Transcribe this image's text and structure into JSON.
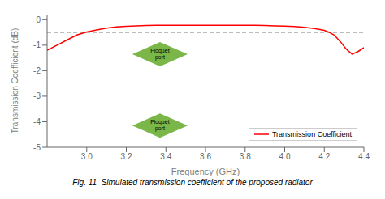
{
  "chart_data": {
    "type": "line",
    "xlabel": "Frequency (GHz)",
    "ylabel": "Transmission Coefficient (dB)",
    "caption": "Fig. 11  Simulated transmission coefficient of the proposed radiator",
    "x": [
      2.8,
      2.85,
      2.9,
      2.95,
      3.0,
      3.05,
      3.1,
      3.15,
      3.2,
      3.25,
      3.3,
      3.35,
      3.4,
      3.45,
      3.5,
      3.55,
      3.6,
      3.65,
      3.7,
      3.75,
      3.8,
      3.85,
      3.9,
      3.95,
      4.0,
      4.05,
      4.1,
      4.15,
      4.2,
      4.22,
      4.25,
      4.28,
      4.31,
      4.34,
      4.37,
      4.4
    ],
    "series": [
      {
        "name": "Transmission Coefficient",
        "color": "#ff0000",
        "values": [
          -1.2,
          -1.0,
          -0.8,
          -0.6,
          -0.48,
          -0.4,
          -0.33,
          -0.28,
          -0.26,
          -0.24,
          -0.23,
          -0.22,
          -0.22,
          -0.22,
          -0.22,
          -0.22,
          -0.22,
          -0.22,
          -0.22,
          -0.22,
          -0.22,
          -0.22,
          -0.23,
          -0.24,
          -0.25,
          -0.27,
          -0.3,
          -0.35,
          -0.42,
          -0.48,
          -0.6,
          -0.85,
          -1.15,
          -1.35,
          -1.25,
          -1.1
        ]
      }
    ],
    "xlim": [
      2.8,
      4.4
    ],
    "ylim": [
      -5,
      0.2
    ],
    "xticks": [
      {
        "value": 3.0,
        "label": "3.0"
      },
      3.2,
      3.4,
      3.6,
      3.8,
      {
        "value": 4.0,
        "label": "4.0"
      },
      4.2,
      4.4
    ],
    "yticks": [
      -5,
      -4,
      -3,
      -2,
      -1,
      0
    ],
    "grid": false,
    "legend": "lower right",
    "reference_lines": [
      {
        "y": -0.5,
        "color": "#888888",
        "line_style": "dashed"
      }
    ],
    "annotations": [
      {
        "text": "Floquet\nport",
        "x": 3.37,
        "y": -1.35,
        "color": "#7ab648"
      },
      {
        "text": "Floquet\nport",
        "x": 3.37,
        "y": -4.15,
        "color": "#7ab648"
      }
    ]
  }
}
